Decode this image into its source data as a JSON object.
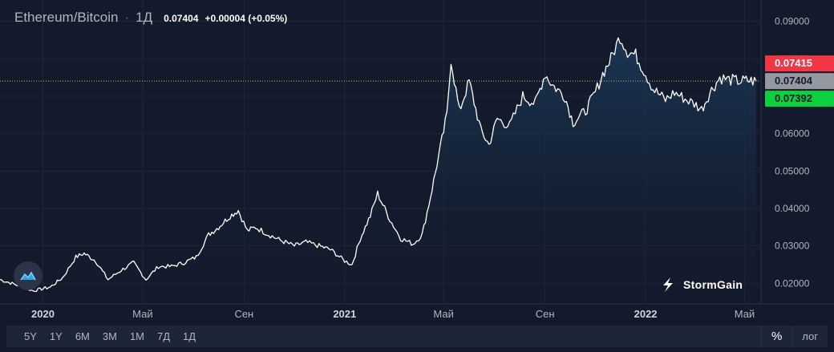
{
  "header": {
    "symbol": "Ethereum/Bitcoin",
    "separator": "·",
    "timeframe": "1Д",
    "last_value": "0.07404",
    "change": "+0.00004 (+0.05%)"
  },
  "price_tags": {
    "ask": "0.07415",
    "last": "0.07404",
    "bid": "0.07392"
  },
  "colors": {
    "background": "#131a2b",
    "line": "#ffffff",
    "ask_tag": "#f23645",
    "last_tag": "#9598a1",
    "bid_tag": "#0ecf3e",
    "grid": "#1f2738"
  },
  "range_buttons": [
    "5Y",
    "1Y",
    "6M",
    "3M",
    "1M",
    "7Д",
    "1Д"
  ],
  "scale_options": {
    "percent": "%",
    "log": "лог"
  },
  "brand": "StormGain",
  "chart_data": {
    "type": "area",
    "title": "",
    "xlabel": "",
    "ylabel": "",
    "y_range": [
      0.016,
      0.094
    ],
    "y_ticks": [
      "0.02000",
      "0.03000",
      "0.04000",
      "0.05000",
      "0.06000",
      "0.07000",
      "0.08000",
      "0.09000"
    ],
    "y_tick_values": [
      0.02,
      0.03,
      0.04,
      0.05,
      0.06,
      0.07,
      0.08,
      0.09
    ],
    "x_range": [
      "2019-11-10",
      "2022-05-20"
    ],
    "x_ticks": [
      {
        "label": "2020",
        "date": "2020-01-01",
        "bold": true
      },
      {
        "label": "Май",
        "date": "2020-05-01",
        "bold": false
      },
      {
        "label": "Сен",
        "date": "2020-09-01",
        "bold": false
      },
      {
        "label": "2021",
        "date": "2021-01-01",
        "bold": true
      },
      {
        "label": "Май",
        "date": "2021-05-01",
        "bold": false
      },
      {
        "label": "Сен",
        "date": "2021-09-01",
        "bold": false
      },
      {
        "label": "2022",
        "date": "2022-01-01",
        "bold": true
      },
      {
        "label": "Май",
        "date": "2022-05-01",
        "bold": false
      }
    ],
    "grid": true,
    "series": [
      {
        "x": [
          "2019-11-10",
          "2019-12-01",
          "2019-12-20",
          "2020-01-10",
          "2020-01-25",
          "2020-02-10",
          "2020-02-20",
          "2020-03-05",
          "2020-03-20",
          "2020-04-05",
          "2020-04-20",
          "2020-05-05",
          "2020-05-20",
          "2020-06-05",
          "2020-06-20",
          "2020-07-05",
          "2020-07-20",
          "2020-08-01",
          "2020-08-15",
          "2020-08-25",
          "2020-09-05",
          "2020-09-15",
          "2020-10-01",
          "2020-10-15",
          "2020-11-01",
          "2020-11-15",
          "2020-12-01",
          "2020-12-15",
          "2021-01-01",
          "2021-01-10",
          "2021-01-20",
          "2021-02-01",
          "2021-02-10",
          "2021-02-25",
          "2021-03-10",
          "2021-03-25",
          "2021-04-05",
          "2021-04-15",
          "2021-04-25",
          "2021-05-05",
          "2021-05-10",
          "2021-05-20",
          "2021-06-01",
          "2021-06-15",
          "2021-06-25",
          "2021-07-05",
          "2021-07-20",
          "2021-08-05",
          "2021-08-20",
          "2021-09-01",
          "2021-09-10",
          "2021-09-25",
          "2021-10-05",
          "2021-10-20",
          "2021-11-01",
          "2021-11-10",
          "2021-11-20",
          "2021-12-01",
          "2021-12-10",
          "2021-12-20",
          "2022-01-01",
          "2022-01-10",
          "2022-01-25",
          "2022-02-05",
          "2022-02-20",
          "2022-03-01",
          "2022-03-10",
          "2022-03-20",
          "2022-04-01",
          "2022-04-10",
          "2022-04-25",
          "2022-05-05",
          "2022-05-15"
        ],
        "values": [
          0.021,
          0.0195,
          0.018,
          0.019,
          0.0215,
          0.027,
          0.028,
          0.026,
          0.021,
          0.0235,
          0.0255,
          0.021,
          0.0245,
          0.0245,
          0.0255,
          0.027,
          0.033,
          0.035,
          0.038,
          0.0395,
          0.034,
          0.035,
          0.033,
          0.0315,
          0.03,
          0.031,
          0.03,
          0.029,
          0.026,
          0.025,
          0.032,
          0.038,
          0.044,
          0.037,
          0.032,
          0.0305,
          0.033,
          0.043,
          0.054,
          0.065,
          0.08,
          0.066,
          0.074,
          0.061,
          0.057,
          0.064,
          0.062,
          0.07,
          0.068,
          0.076,
          0.073,
          0.07,
          0.063,
          0.066,
          0.071,
          0.076,
          0.08,
          0.086,
          0.082,
          0.081,
          0.076,
          0.072,
          0.069,
          0.071,
          0.069,
          0.068,
          0.0665,
          0.071,
          0.075,
          0.0745,
          0.074,
          0.0742,
          0.074
        ]
      }
    ]
  }
}
